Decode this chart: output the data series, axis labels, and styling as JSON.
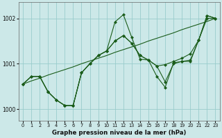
{
  "title": "Graphe pression niveau de la mer (hPa)",
  "bg_color": "#cce8e8",
  "grid_color": "#99cccc",
  "line_color": "#1a5c1a",
  "xlim": [
    -0.5,
    23.5
  ],
  "ylim": [
    999.75,
    1002.35
  ],
  "yticks": [
    1000,
    1001,
    1002
  ],
  "xticks": [
    0,
    1,
    2,
    3,
    4,
    5,
    6,
    7,
    8,
    9,
    10,
    11,
    12,
    13,
    14,
    15,
    16,
    17,
    18,
    19,
    20,
    21,
    22,
    23
  ],
  "line1": [
    1000.55,
    1000.72,
    1000.72,
    1000.38,
    1000.2,
    1000.08,
    1000.08,
    1000.8,
    1001.0,
    1001.18,
    1001.28,
    1001.5,
    1001.62,
    1001.45,
    1001.18,
    1001.08,
    1000.95,
    1000.98,
    1001.05,
    1001.12,
    1001.22,
    1001.52,
    1002.0,
    1002.0
  ],
  "line2": [
    1000.55,
    1000.72,
    1000.72,
    1000.38,
    1000.2,
    1000.08,
    1000.08,
    1000.8,
    1001.0,
    1001.18,
    1001.28,
    1001.92,
    1002.08,
    1001.58,
    1001.1,
    1001.08,
    1000.72,
    1000.48,
    1001.02,
    1001.05,
    1001.05,
    1001.52,
    1002.06,
    1002.0
  ],
  "line3_trend": [
    1000.55,
    1000.62,
    1000.68,
    1000.75,
    1000.81,
    1000.87,
    1000.93,
    1001.0,
    1001.06,
    1001.12,
    1001.18,
    1001.25,
    1001.31,
    1001.37,
    1001.43,
    1001.5,
    1001.56,
    1001.62,
    1001.68,
    1001.75,
    1001.81,
    1001.87,
    1001.93,
    1002.0
  ],
  "line4": [
    1000.55,
    1000.72,
    1000.72,
    1000.38,
    1000.2,
    1000.08,
    1000.08,
    1000.8,
    1001.0,
    1001.18,
    1001.28,
    1001.5,
    1001.62,
    1001.45,
    1001.18,
    1001.08,
    1000.95,
    1000.6,
    1001.0,
    1001.05,
    1001.08,
    1001.52,
    1002.06,
    1002.0
  ],
  "marker_size": 2.5
}
